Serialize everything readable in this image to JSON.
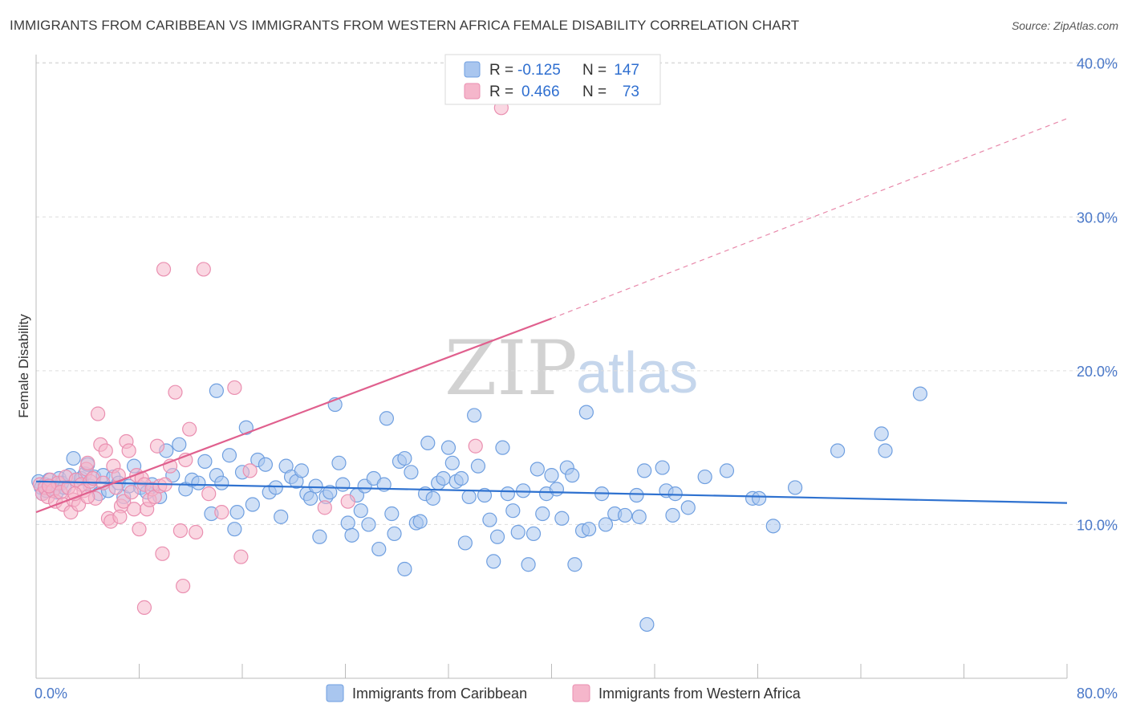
{
  "title": "IMMIGRANTS FROM CARIBBEAN VS IMMIGRANTS FROM WESTERN AFRICA FEMALE DISABILITY CORRELATION CHART",
  "source": "Source: ZipAtlas.com",
  "watermark": {
    "zip": "ZIP",
    "atlas": "atlas"
  },
  "colors": {
    "blue_fill": "#a9c6ef",
    "blue_stroke": "#6f9fe0",
    "blue_line": "#2f72d0",
    "pink_fill": "#f5b6cb",
    "pink_stroke": "#ea8fb0",
    "pink_line": "#e0608e",
    "grid": "#dddddd",
    "axis_text": "#4a78c8"
  },
  "stats": {
    "blue": {
      "r_label": "R =",
      "r_value": "-0.125",
      "n_label": "N =",
      "n_value": "147"
    },
    "pink": {
      "r_label": "R =",
      "r_value": "0.466",
      "n_label": "N =",
      "n_value": "73"
    }
  },
  "chart_data": {
    "type": "scatter",
    "title": "IMMIGRANTS FROM CARIBBEAN VS IMMIGRANTS FROM WESTERN AFRICA FEMALE DISABILITY CORRELATION CHART",
    "xlabel": "",
    "ylabel": "Female Disability",
    "xlim": [
      0,
      80
    ],
    "ylim": [
      0,
      41.5
    ],
    "x_tick_labels": {
      "left": "0.0%",
      "right": "80.0%"
    },
    "y_ticks": [
      {
        "value": 10,
        "label": "10.0%"
      },
      {
        "value": 20,
        "label": "20.0%"
      },
      {
        "value": 30,
        "label": "30.0%"
      },
      {
        "value": 40,
        "label": "40.0%"
      }
    ],
    "legend": [
      "Immigrants from Caribbean",
      "Immigrants from Western Africa"
    ],
    "series": [
      {
        "name": "Immigrants from Caribbean",
        "color": "#6f9fe0",
        "trend": {
          "x0": 0,
          "y0": 12.8,
          "x1": 80,
          "y1": 11.4,
          "style": "solid"
        },
        "points": [
          [
            0.2,
            12.8
          ],
          [
            0.4,
            12.4
          ],
          [
            0.5,
            12.0
          ],
          [
            0.7,
            12.6
          ],
          [
            0.8,
            12.2
          ],
          [
            1.0,
            12.9
          ],
          [
            1.2,
            12.5
          ],
          [
            1.4,
            12.3
          ],
          [
            1.6,
            12.1
          ],
          [
            1.8,
            13.0
          ],
          [
            2.0,
            12.7
          ],
          [
            2.2,
            12.4
          ],
          [
            2.6,
            13.2
          ],
          [
            2.9,
            14.3
          ],
          [
            3.1,
            12.9
          ],
          [
            3.5,
            13.0
          ],
          [
            3.8,
            13.3
          ],
          [
            4.0,
            13.9
          ],
          [
            4.2,
            12.5
          ],
          [
            4.5,
            13.1
          ],
          [
            4.9,
            12.0
          ],
          [
            5.2,
            13.2
          ],
          [
            5.6,
            12.2
          ],
          [
            6.0,
            13.1
          ],
          [
            6.4,
            12.7
          ],
          [
            6.8,
            11.8
          ],
          [
            7.2,
            12.5
          ],
          [
            7.6,
            13.8
          ],
          [
            8.1,
            12.4
          ],
          [
            8.6,
            12.1
          ],
          [
            9.0,
            12.6
          ],
          [
            9.6,
            11.8
          ],
          [
            10.1,
            14.8
          ],
          [
            10.6,
            13.2
          ],
          [
            11.1,
            15.2
          ],
          [
            11.6,
            12.3
          ],
          [
            12.1,
            12.9
          ],
          [
            12.6,
            12.7
          ],
          [
            13.1,
            14.1
          ],
          [
            13.6,
            10.7
          ],
          [
            14.0,
            13.2
          ],
          [
            14.0,
            18.7
          ],
          [
            14.4,
            12.7
          ],
          [
            15.0,
            14.5
          ],
          [
            15.4,
            9.7
          ],
          [
            15.6,
            10.8
          ],
          [
            16.0,
            13.4
          ],
          [
            16.3,
            16.3
          ],
          [
            16.8,
            11.3
          ],
          [
            17.2,
            14.2
          ],
          [
            17.8,
            13.9
          ],
          [
            18.1,
            12.1
          ],
          [
            18.6,
            12.4
          ],
          [
            19.0,
            10.5
          ],
          [
            19.4,
            13.8
          ],
          [
            19.8,
            13.1
          ],
          [
            20.2,
            12.8
          ],
          [
            20.6,
            13.5
          ],
          [
            21.0,
            12.0
          ],
          [
            21.3,
            11.7
          ],
          [
            21.7,
            12.5
          ],
          [
            22.0,
            9.2
          ],
          [
            22.5,
            11.8
          ],
          [
            22.8,
            12.1
          ],
          [
            23.2,
            17.8
          ],
          [
            23.5,
            14.0
          ],
          [
            23.8,
            12.6
          ],
          [
            24.2,
            10.1
          ],
          [
            24.5,
            9.3
          ],
          [
            24.9,
            11.9
          ],
          [
            25.2,
            10.9
          ],
          [
            25.5,
            12.5
          ],
          [
            25.8,
            10.0
          ],
          [
            26.2,
            13.0
          ],
          [
            26.6,
            8.4
          ],
          [
            27.0,
            12.6
          ],
          [
            27.2,
            16.9
          ],
          [
            27.6,
            10.7
          ],
          [
            27.8,
            9.4
          ],
          [
            28.2,
            14.1
          ],
          [
            28.6,
            14.3
          ],
          [
            28.6,
            7.1
          ],
          [
            29.1,
            13.4
          ],
          [
            29.5,
            10.1
          ],
          [
            29.8,
            10.2
          ],
          [
            30.2,
            12.0
          ],
          [
            30.4,
            15.3
          ],
          [
            30.8,
            11.7
          ],
          [
            31.2,
            12.7
          ],
          [
            31.6,
            13.0
          ],
          [
            32.0,
            15.0
          ],
          [
            32.3,
            14.0
          ],
          [
            32.6,
            12.8
          ],
          [
            33.0,
            13.0
          ],
          [
            33.3,
            8.8
          ],
          [
            33.6,
            11.8
          ],
          [
            34.0,
            17.1
          ],
          [
            34.3,
            13.8
          ],
          [
            34.8,
            11.9
          ],
          [
            35.2,
            10.3
          ],
          [
            35.5,
            7.6
          ],
          [
            35.8,
            9.2
          ],
          [
            36.2,
            15.0
          ],
          [
            36.6,
            12.0
          ],
          [
            37.0,
            10.9
          ],
          [
            37.4,
            9.5
          ],
          [
            37.8,
            12.2
          ],
          [
            38.2,
            7.4
          ],
          [
            38.6,
            9.4
          ],
          [
            38.9,
            13.6
          ],
          [
            39.3,
            10.7
          ],
          [
            39.6,
            12.0
          ],
          [
            40.0,
            13.2
          ],
          [
            40.4,
            12.3
          ],
          [
            40.8,
            10.4
          ],
          [
            41.2,
            13.7
          ],
          [
            41.6,
            13.2
          ],
          [
            41.8,
            7.4
          ],
          [
            42.4,
            9.6
          ],
          [
            42.7,
            17.3
          ],
          [
            42.9,
            9.7
          ],
          [
            43.9,
            12.0
          ],
          [
            44.2,
            10.0
          ],
          [
            44.9,
            10.7
          ],
          [
            45.7,
            10.6
          ],
          [
            46.6,
            11.9
          ],
          [
            46.8,
            10.5
          ],
          [
            47.2,
            13.5
          ],
          [
            47.4,
            3.5
          ],
          [
            48.6,
            13.7
          ],
          [
            48.9,
            12.2
          ],
          [
            49.4,
            10.6
          ],
          [
            49.6,
            12.0
          ],
          [
            50.6,
            11.1
          ],
          [
            51.9,
            13.1
          ],
          [
            53.6,
            13.5
          ],
          [
            55.6,
            11.7
          ],
          [
            56.1,
            11.7
          ],
          [
            57.2,
            9.9
          ],
          [
            58.9,
            12.4
          ],
          [
            62.2,
            14.8
          ],
          [
            65.6,
            15.9
          ],
          [
            65.9,
            14.8
          ],
          [
            68.6,
            18.5
          ]
        ]
      },
      {
        "name": "Immigrants from Western Africa",
        "color": "#ea8fb0",
        "trend": {
          "x0": 0,
          "y0": 10.8,
          "x1": 40,
          "y1": 23.4,
          "dash_to": {
            "x": 80,
            "y": 36.4
          },
          "style": "solid-then-dashed"
        },
        "points": [
          [
            0.3,
            12.6
          ],
          [
            0.5,
            12.0
          ],
          [
            0.7,
            12.4
          ],
          [
            0.9,
            11.8
          ],
          [
            1.1,
            12.9
          ],
          [
            1.3,
            12.2
          ],
          [
            1.5,
            11.5
          ],
          [
            1.7,
            12.7
          ],
          [
            1.9,
            12.1
          ],
          [
            2.1,
            11.3
          ],
          [
            2.3,
            13.1
          ],
          [
            2.5,
            12.4
          ],
          [
            2.7,
            10.8
          ],
          [
            2.9,
            11.6
          ],
          [
            3.1,
            12.9
          ],
          [
            3.3,
            11.3
          ],
          [
            3.5,
            12.6
          ],
          [
            3.7,
            12.2
          ],
          [
            3.9,
            13.6
          ],
          [
            4.0,
            14.0
          ],
          [
            4.2,
            12.8
          ],
          [
            4.4,
            13.0
          ],
          [
            4.6,
            11.7
          ],
          [
            4.8,
            17.2
          ],
          [
            5.0,
            15.2
          ],
          [
            5.2,
            12.7
          ],
          [
            5.4,
            14.8
          ],
          [
            5.6,
            10.4
          ],
          [
            5.8,
            10.2
          ],
          [
            6.0,
            13.8
          ],
          [
            6.2,
            12.4
          ],
          [
            6.4,
            13.2
          ],
          [
            6.6,
            11.2
          ],
          [
            6.8,
            11.5
          ],
          [
            7.0,
            15.4
          ],
          [
            7.2,
            14.8
          ],
          [
            7.4,
            12.1
          ],
          [
            7.6,
            11.0
          ],
          [
            7.8,
            13.2
          ],
          [
            8.0,
            9.7
          ],
          [
            8.2,
            13.0
          ],
          [
            8.4,
            12.6
          ],
          [
            8.6,
            11.0
          ],
          [
            8.8,
            11.6
          ],
          [
            9.0,
            12.3
          ],
          [
            9.2,
            11.8
          ],
          [
            9.4,
            15.1
          ],
          [
            9.6,
            12.5
          ],
          [
            9.8,
            8.1
          ],
          [
            10.0,
            12.6
          ],
          [
            10.4,
            13.8
          ],
          [
            10.8,
            18.6
          ],
          [
            11.2,
            9.6
          ],
          [
            11.6,
            14.2
          ],
          [
            11.9,
            16.2
          ],
          [
            12.4,
            9.5
          ],
          [
            13.0,
            26.6
          ],
          [
            13.4,
            12.0
          ],
          [
            14.4,
            10.8
          ],
          [
            15.4,
            18.9
          ],
          [
            15.9,
            7.9
          ],
          [
            16.6,
            13.5
          ],
          [
            22.4,
            11.1
          ],
          [
            24.2,
            11.5
          ],
          [
            34.1,
            15.1
          ],
          [
            36.1,
            37.1
          ],
          [
            8.4,
            4.6
          ],
          [
            11.4,
            6.0
          ],
          [
            9.9,
            26.6
          ],
          [
            4.0,
            11.8
          ],
          [
            6.5,
            10.5
          ],
          [
            3.0,
            12.0
          ],
          [
            1.0,
            12.5
          ]
        ]
      }
    ]
  }
}
